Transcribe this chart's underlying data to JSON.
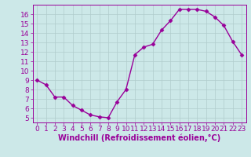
{
  "x": [
    0,
    1,
    2,
    3,
    4,
    5,
    6,
    7,
    8,
    9,
    10,
    11,
    12,
    13,
    14,
    15,
    16,
    17,
    18,
    19,
    20,
    21,
    22,
    23
  ],
  "y": [
    9.0,
    8.5,
    7.2,
    7.2,
    6.3,
    5.8,
    5.3,
    5.1,
    5.0,
    6.7,
    8.0,
    11.7,
    12.5,
    12.8,
    14.3,
    15.3,
    16.5,
    16.5,
    16.5,
    16.3,
    15.7,
    14.8,
    13.1,
    11.7
  ],
  "line_color": "#990099",
  "marker": "D",
  "markersize": 2.5,
  "linewidth": 1.0,
  "bg_color": "#cce8e8",
  "grid_color": "#b0cccc",
  "xlabel": "Windchill (Refroidissement éolien,°C)",
  "xlabel_color": "#990099",
  "tick_color": "#990099",
  "spine_color": "#990099",
  "ylim": [
    4.5,
    17.0
  ],
  "yticks": [
    5,
    6,
    7,
    8,
    9,
    10,
    11,
    12,
    13,
    14,
    15,
    16
  ],
  "xlim": [
    -0.5,
    23.5
  ],
  "xticks": [
    0,
    1,
    2,
    3,
    4,
    5,
    6,
    7,
    8,
    9,
    10,
    11,
    12,
    13,
    14,
    15,
    16,
    17,
    18,
    19,
    20,
    21,
    22,
    23
  ],
  "tick_fontsize": 6.5,
  "xlabel_fontsize": 7.0
}
